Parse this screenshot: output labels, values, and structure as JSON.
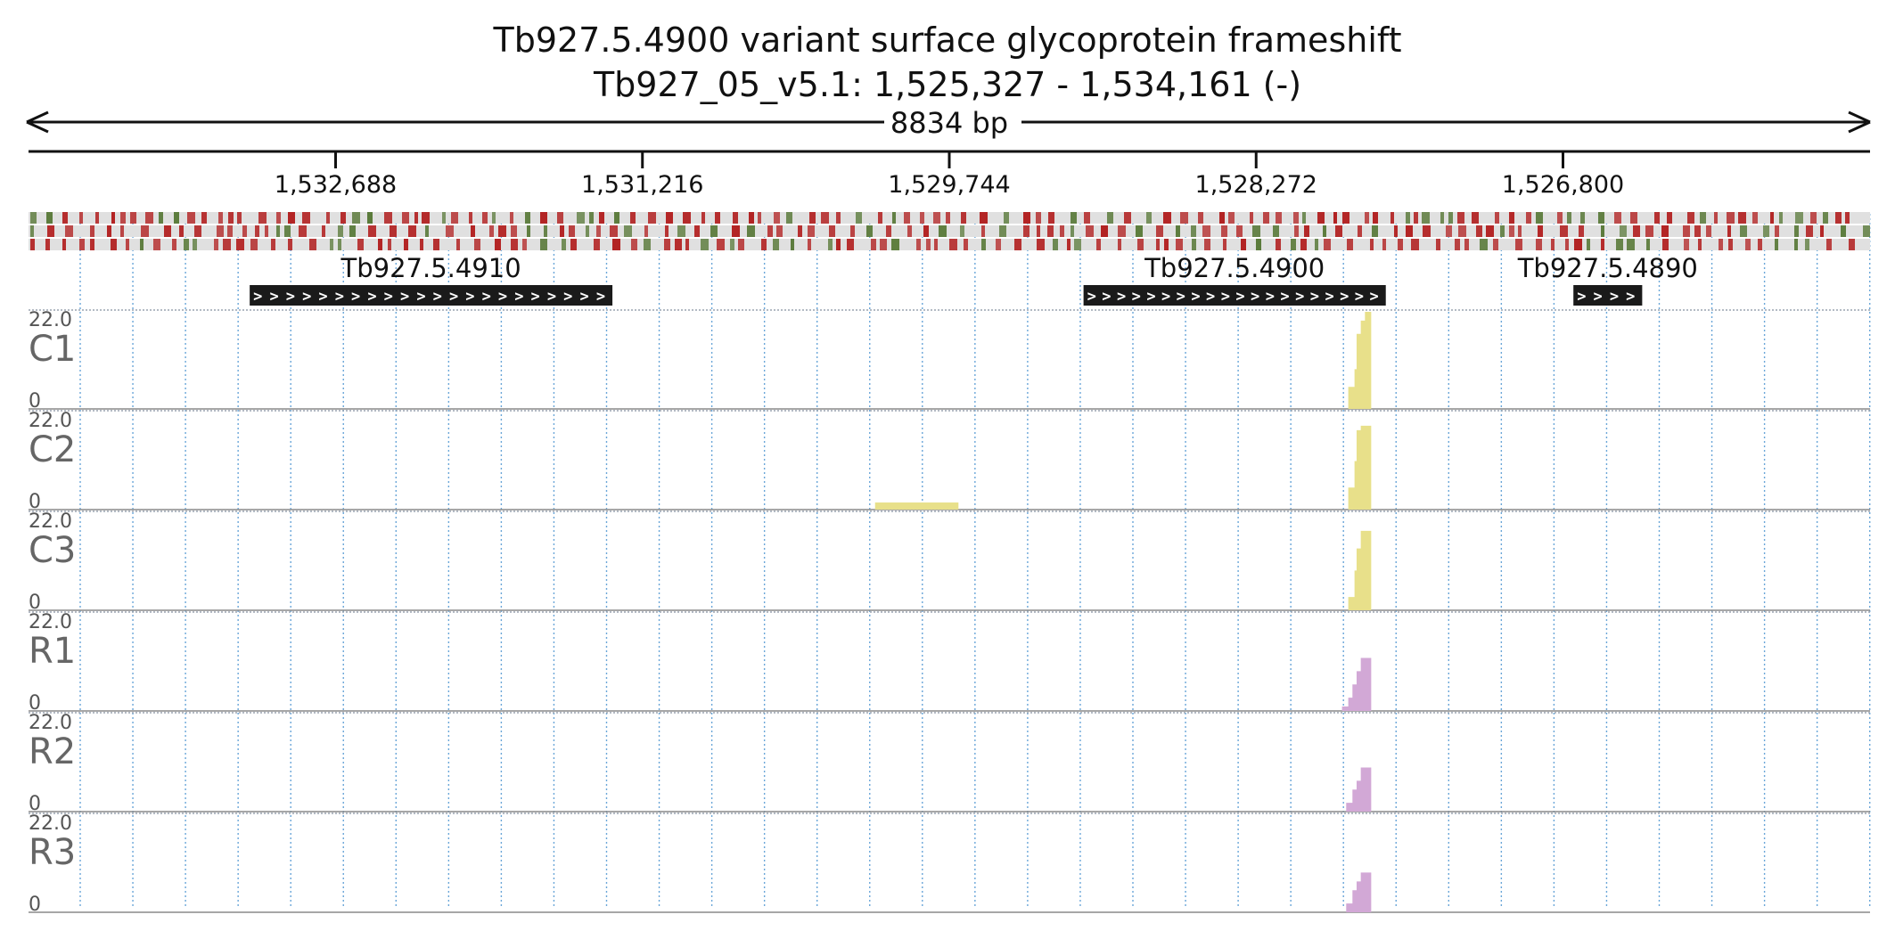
{
  "header": {
    "title_line1": "Tb927.5.4900  variant surface glycoprotein  frameshift",
    "title_line2": "Tb927_05_v5.1: 1,525,327 - 1,534,161 (-)",
    "span_label": "8834 bp"
  },
  "colors": {
    "axis": "#111111",
    "grid": "#6aa6d8",
    "stop_red": "#b22222",
    "start_green": "#5a7a3a",
    "frame_bg": "#e0e0e0",
    "gene": "#1a1a1a",
    "control_coverage": "#e8e08a",
    "rnai_coverage": "#d2a8d6",
    "track_label": "#666666"
  },
  "ruler": {
    "region_start": 1525327,
    "region_end": 1534161,
    "strand": "-",
    "ticks": [
      {
        "value": 1532688,
        "label": "1,532,688"
      },
      {
        "value": 1531216,
        "label": "1,531,216"
      },
      {
        "value": 1529744,
        "label": "1,529,744"
      },
      {
        "value": 1528272,
        "label": "1,528,272"
      },
      {
        "value": 1526800,
        "label": "1,526,800"
      }
    ]
  },
  "genes": [
    {
      "name": "Tb927.5.4910",
      "start": 1533100,
      "end": 1531360,
      "chevrons": ">>>>>>>>>>>>>>>>>>>>>>"
    },
    {
      "name": "Tb927.5.4900",
      "start": 1529100,
      "end": 1527650,
      "chevrons": ">>>>>>>>>>>>>>>>>>>>"
    },
    {
      "name": "Tb927.5.4890",
      "start": 1526750,
      "end": 1526420,
      "chevrons": ">>>>"
    }
  ],
  "chart_data": {
    "type": "area",
    "x_unit": "bp",
    "ylim": [
      0,
      22.0
    ],
    "tracks": [
      {
        "name": "C1",
        "max_label": "22.0",
        "min_label": "0",
        "group": "control",
        "points": [
          [
            1527870,
            0
          ],
          [
            1527830,
            5
          ],
          [
            1527800,
            9
          ],
          [
            1527790,
            17
          ],
          [
            1527770,
            20
          ],
          [
            1527750,
            22
          ],
          [
            1527730,
            22
          ],
          [
            1527720,
            0
          ]
        ]
      },
      {
        "name": "C2",
        "max_label": "22.0",
        "min_label": "0",
        "group": "control",
        "points": [
          [
            1527870,
            0
          ],
          [
            1527830,
            5
          ],
          [
            1527800,
            11
          ],
          [
            1527790,
            18
          ],
          [
            1527770,
            19
          ],
          [
            1527730,
            19
          ],
          [
            1527720,
            0
          ]
        ],
        "extra": [
          [
            1530100,
            1
          ],
          [
            1529700,
            1
          ]
        ]
      },
      {
        "name": "C3",
        "max_label": "22.0",
        "min_label": "0",
        "group": "control",
        "points": [
          [
            1527870,
            0
          ],
          [
            1527830,
            3
          ],
          [
            1527800,
            9
          ],
          [
            1527790,
            14
          ],
          [
            1527770,
            18
          ],
          [
            1527730,
            18
          ],
          [
            1527720,
            0
          ]
        ]
      },
      {
        "name": "R1",
        "max_label": "22.0",
        "min_label": "0",
        "group": "rnai",
        "points": [
          [
            1527890,
            0
          ],
          [
            1527860,
            1
          ],
          [
            1527830,
            3
          ],
          [
            1527810,
            6
          ],
          [
            1527790,
            9
          ],
          [
            1527770,
            12
          ],
          [
            1527730,
            12
          ],
          [
            1527720,
            0
          ]
        ]
      },
      {
        "name": "R2",
        "max_label": "22.0",
        "min_label": "0",
        "group": "rnai",
        "points": [
          [
            1527870,
            0
          ],
          [
            1527840,
            2
          ],
          [
            1527810,
            5
          ],
          [
            1527790,
            7
          ],
          [
            1527770,
            10
          ],
          [
            1527730,
            10
          ],
          [
            1527720,
            0
          ]
        ]
      },
      {
        "name": "R3",
        "max_label": "22.0",
        "min_label": "0",
        "group": "rnai",
        "points": [
          [
            1527870,
            0
          ],
          [
            1527840,
            2
          ],
          [
            1527810,
            5
          ],
          [
            1527790,
            7
          ],
          [
            1527770,
            9
          ],
          [
            1527730,
            9
          ],
          [
            1527720,
            0
          ]
        ]
      }
    ]
  }
}
